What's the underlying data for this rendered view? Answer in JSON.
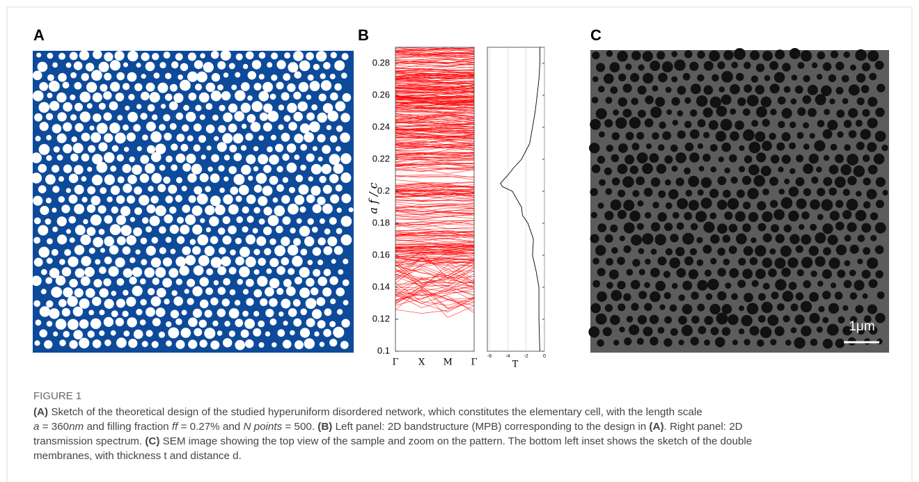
{
  "panels": {
    "a": {
      "label": "A"
    },
    "b": {
      "label": "B"
    },
    "c": {
      "label": "C",
      "scale_bar": "1μm"
    }
  },
  "chart_data": {
    "type": "line",
    "ylabel": "a f / c",
    "xlabel": "T",
    "categories": [
      "Γ",
      "X",
      "M",
      "Γ"
    ],
    "ylim": [
      0.1,
      0.29
    ],
    "yticks": [
      0.1,
      0.12,
      0.14,
      0.16,
      0.18,
      0.2,
      0.22,
      0.24,
      0.26,
      0.28
    ],
    "xlim": [
      -6,
      0
    ],
    "xticks": [
      -6,
      -4,
      -2,
      0
    ],
    "grid": true,
    "color": "#000000",
    "band_color": "#ff0000",
    "frequency": [
      0.1,
      0.12,
      0.14,
      0.15,
      0.16,
      0.17,
      0.18,
      0.185,
      0.19,
      0.195,
      0.2,
      0.203,
      0.205,
      0.21,
      0.215,
      0.22,
      0.23,
      0.24,
      0.25,
      0.26,
      0.27,
      0.28,
      0.29
    ],
    "T": [
      -0.5,
      -0.6,
      -0.6,
      -0.9,
      -1.3,
      -1.2,
      -1.8,
      -2.4,
      -2.5,
      -3.0,
      -3.5,
      -4.6,
      -4.8,
      -4.0,
      -3.3,
      -2.5,
      -1.6,
      -1.3,
      -1.0,
      -0.8,
      -0.6,
      -0.5,
      -0.5
    ]
  },
  "caption": {
    "label": "FIGURE 1",
    "lines": [
      [
        "(A)",
        " Sketch of the theoretical design of the studied hyperuniform disordered network, which constitutes the elementary cell, with the length scale"
      ],
      [
        "a",
        " = 360",
        "nm",
        " and filling fraction ",
        "ff",
        " = 0.27% and ",
        "N points",
        " = 500. ",
        "(B)",
        " Left panel: 2D bandstructure (MPB) corresponding to the design in ",
        "(A)",
        ". Right panel: 2D"
      ],
      [
        "transmission spectrum. ",
        "(C)",
        " SEM image showing the top view of the sample and zoom on the pattern. The bottom left inset shows the sketch of the double"
      ],
      [
        "membranes, with thickness t and distance d."
      ]
    ]
  }
}
